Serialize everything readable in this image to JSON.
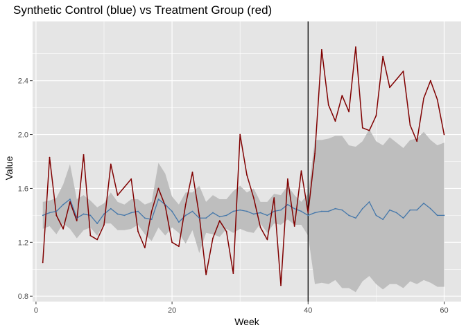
{
  "chart_data": {
    "type": "line",
    "title": "Synthetic Control (blue) vs Treatment Group (red)",
    "xlabel": "Week",
    "ylabel": "Value",
    "xlim": [
      -0.5,
      62.5
    ],
    "ylim": [
      0.76,
      2.84
    ],
    "x_ticks": [
      0,
      20,
      40,
      60
    ],
    "x_minor_ticks": [
      10,
      30,
      50
    ],
    "y_ticks": [
      0.8,
      1.2,
      1.6,
      2.0,
      2.4
    ],
    "y_minor_ticks": [
      1.0,
      1.4,
      1.8,
      2.2,
      2.6
    ],
    "grid": true,
    "intervention_x": 40,
    "colors": {
      "panel": "#e5e5e5",
      "grid": "#ffffff",
      "treatment": "#800000",
      "control": "#4477aa",
      "band": "#bebebe",
      "vline": "#000000"
    },
    "x": [
      1,
      2,
      3,
      4,
      5,
      6,
      7,
      8,
      9,
      10,
      11,
      12,
      13,
      14,
      15,
      16,
      17,
      18,
      19,
      20,
      21,
      22,
      23,
      24,
      25,
      26,
      27,
      28,
      29,
      30,
      31,
      32,
      33,
      34,
      35,
      36,
      37,
      38,
      39,
      40,
      41,
      42,
      43,
      44,
      45,
      46,
      47,
      48,
      49,
      50,
      51,
      52,
      53,
      54,
      55,
      56,
      57,
      58,
      59,
      60
    ],
    "series": [
      {
        "role": "treatment",
        "values": [
          1.05,
          1.83,
          1.4,
          1.3,
          1.5,
          1.36,
          1.85,
          1.25,
          1.22,
          1.33,
          1.78,
          1.55,
          1.61,
          1.67,
          1.28,
          1.16,
          1.43,
          1.6,
          1.47,
          1.2,
          1.17,
          1.48,
          1.72,
          1.4,
          0.96,
          1.23,
          1.36,
          1.28,
          0.97,
          2.0,
          1.7,
          1.53,
          1.31,
          1.22,
          1.53,
          0.88,
          1.67,
          1.32,
          1.73,
          1.42,
          1.86,
          2.63,
          2.22,
          2.1,
          2.29,
          2.17,
          2.65,
          2.05,
          2.03,
          2.14,
          2.58,
          2.35,
          2.41,
          2.47,
          2.07,
          1.95,
          2.27,
          2.4,
          2.26,
          2.0
        ]
      },
      {
        "role": "control",
        "values": [
          1.4,
          1.42,
          1.43,
          1.48,
          1.52,
          1.38,
          1.41,
          1.4,
          1.34,
          1.41,
          1.45,
          1.41,
          1.4,
          1.42,
          1.43,
          1.38,
          1.37,
          1.52,
          1.48,
          1.43,
          1.35,
          1.4,
          1.43,
          1.38,
          1.38,
          1.42,
          1.39,
          1.4,
          1.43,
          1.44,
          1.43,
          1.41,
          1.42,
          1.4,
          1.43,
          1.44,
          1.48,
          1.45,
          1.43,
          1.4,
          1.42,
          1.43,
          1.43,
          1.45,
          1.44,
          1.4,
          1.38,
          1.45,
          1.5,
          1.4,
          1.37,
          1.44,
          1.42,
          1.38,
          1.44,
          1.44,
          1.49,
          1.45,
          1.4,
          1.4
        ]
      }
    ],
    "band": {
      "role": "confidence-interval",
      "lower": [
        1.3,
        1.32,
        1.26,
        1.34,
        1.3,
        1.23,
        1.29,
        1.31,
        1.25,
        1.34,
        1.34,
        1.29,
        1.29,
        1.3,
        1.33,
        1.26,
        1.21,
        1.31,
        1.25,
        1.31,
        1.27,
        1.19,
        1.29,
        1.12,
        1.27,
        1.26,
        1.24,
        1.3,
        1.27,
        1.3,
        1.28,
        1.27,
        1.34,
        1.27,
        1.34,
        1.33,
        1.37,
        1.33,
        1.33,
        1.25,
        0.89,
        0.9,
        0.89,
        0.92,
        0.86,
        0.86,
        0.83,
        0.91,
        0.95,
        0.89,
        0.85,
        0.89,
        0.89,
        0.86,
        0.91,
        0.89,
        0.92,
        0.9,
        0.87,
        0.87
      ],
      "upper": [
        1.5,
        1.51,
        1.53,
        1.63,
        1.78,
        1.52,
        1.55,
        1.51,
        1.46,
        1.49,
        1.57,
        1.5,
        1.48,
        1.52,
        1.52,
        1.48,
        1.5,
        1.79,
        1.71,
        1.54,
        1.48,
        1.57,
        1.57,
        1.62,
        1.5,
        1.55,
        1.52,
        1.52,
        1.58,
        1.62,
        1.57,
        1.6,
        1.5,
        1.5,
        1.56,
        1.55,
        1.62,
        1.55,
        1.5,
        1.56,
        1.96,
        1.96,
        1.97,
        1.99,
        1.99,
        1.92,
        1.91,
        1.95,
        2.04,
        1.95,
        1.92,
        1.98,
        1.94,
        1.9,
        1.96,
        1.97,
        2.02,
        1.96,
        1.92,
        1.94
      ]
    }
  }
}
